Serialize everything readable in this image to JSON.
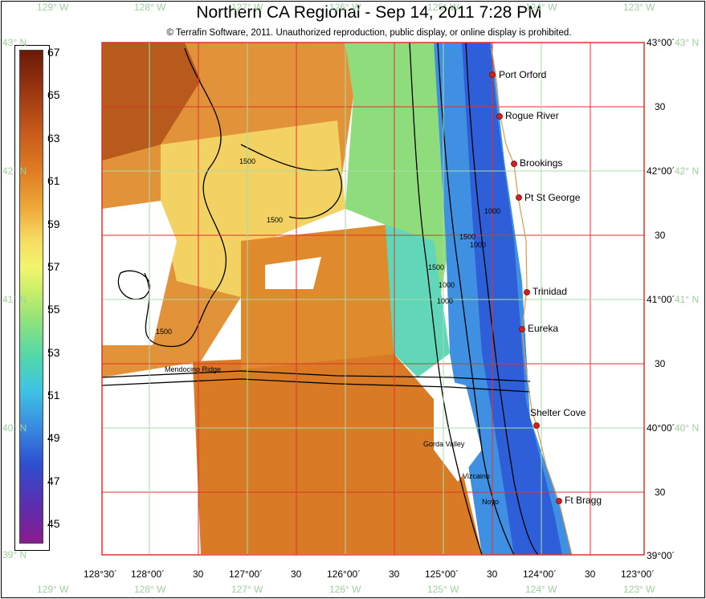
{
  "title": "Northern CA Regional - Sep 14, 2011 7:28 PM",
  "copyright": "© Terrafin Software,  2011.  Unauthorized reproduction, public display, or online display is prohibited.",
  "legend": {
    "ticks": [
      "67",
      "65",
      "63",
      "61",
      "59",
      "57",
      "55",
      "53",
      "51",
      "49",
      "47",
      "45"
    ]
  },
  "geo_labels": {
    "top": [
      "129° W",
      "128° W",
      "127° W",
      "126° W",
      "125° W",
      "124° W",
      "123° W"
    ],
    "bottom": [
      "129° W",
      "128° W",
      "127° W",
      "126° W",
      "125° W",
      "124° W",
      "123° W"
    ],
    "left": [
      "43° N",
      "42° N",
      "41° N",
      "40° N",
      "39° N"
    ],
    "right": [
      "43° N",
      "42° N",
      "41° N",
      "40° N"
    ]
  },
  "axis": {
    "x": [
      "128°30´",
      "128°00´",
      "30",
      "127°00´",
      "30",
      "126°00´",
      "30",
      "125°00´",
      "30",
      "124°00´",
      "30",
      "123°00´"
    ],
    "y": [
      "43°00´",
      "30",
      "42°00´",
      "30",
      "41°00´",
      "30",
      "40°00´",
      "30",
      "39°00´"
    ]
  },
  "cities": [
    "Port Orford",
    "Rogue River",
    "Brookings",
    "Pt St George",
    "Trinidad",
    "Eureka",
    "Shelter Cove",
    "Ft Bragg"
  ],
  "contour_labels": [
    "1500",
    "1500",
    "1500",
    "1500",
    "1500",
    "1000",
    "1000",
    "1000",
    "1000",
    "Mendocino Ridge",
    "Gorda Valley",
    "Vizcaino",
    "Noyo"
  ]
}
